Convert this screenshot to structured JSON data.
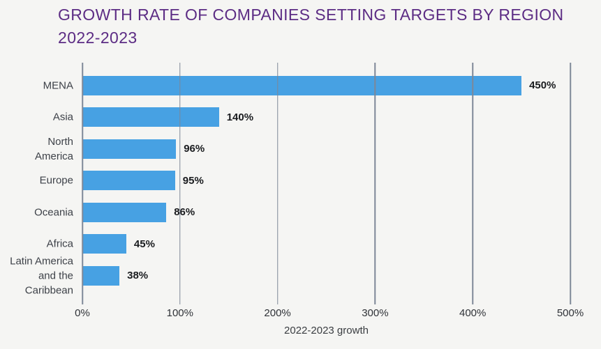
{
  "title": {
    "text": "GROWTH RATE OF COMPANIES SETTING TARGETS BY REGION 2022-2023",
    "color": "#5C2C84"
  },
  "chart_data": {
    "type": "bar",
    "orientation": "horizontal",
    "title": "GROWTH RATE OF COMPANIES SETTING TARGETS BY REGION 2022-2023",
    "categories": [
      "MENA",
      "Asia",
      "North America",
      "Europe",
      "Oceania",
      "Africa",
      "Latin America and the Caribbean"
    ],
    "categories_display": [
      "MENA",
      "Asia",
      "North\nAmerica",
      "Europe",
      "Oceania",
      "Africa",
      "Latin America\nand the\nCaribbean"
    ],
    "values": [
      450,
      140,
      96,
      95,
      86,
      45,
      38
    ],
    "value_labels": [
      "450%",
      "140%",
      "96%",
      "95%",
      "86%",
      "45%",
      "38%"
    ],
    "xlabel": "2022-2023 growth",
    "xlim": [
      0,
      500
    ],
    "xticks": [
      0,
      100,
      200,
      300,
      400,
      500
    ],
    "xtick_labels": [
      "0%",
      "100%",
      "200%",
      "300%",
      "400%",
      "500%"
    ],
    "grid": true,
    "legend": false,
    "colors": {
      "bar": "#47A1E3",
      "gridline": "#7E8898",
      "title": "#5C2C84",
      "value_label": "#1A1C1F",
      "category_label": "#3D4148",
      "tick_label": "#2F3237",
      "axis_label": "#3A3D41",
      "background": "#F5F5F3"
    }
  }
}
